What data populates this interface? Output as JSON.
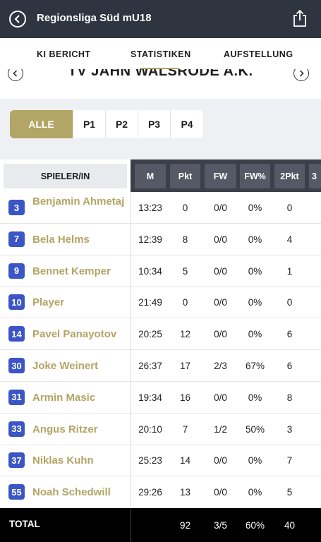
{
  "header": {
    "title": "Regionsliga Süd mU18",
    "back_icon": "chevron-left-circle-icon",
    "share_icon": "share-icon"
  },
  "tabs": [
    {
      "label": "KI BERICHT"
    },
    {
      "label": "STATISTIKEN",
      "active": true
    },
    {
      "label": "AUFSTELLUNG"
    }
  ],
  "team": {
    "name": "TV JAHN WALSRODE A.K."
  },
  "periods": [
    {
      "label": "ALLE",
      "active": true
    },
    {
      "label": "P1"
    },
    {
      "label": "P2"
    },
    {
      "label": "P3"
    },
    {
      "label": "P4"
    }
  ],
  "table": {
    "player_header": "SPIELER/IN",
    "columns": [
      "M",
      "Pkt",
      "FW",
      "FW%",
      "2Pkt",
      "3"
    ],
    "rows": [
      {
        "num": "3",
        "name": "Benjamin Ahmetaj",
        "m": "13:23",
        "pkt": "0",
        "fw": "0/0",
        "fwp": "0%",
        "p2": "0"
      },
      {
        "num": "7",
        "name": "Bela Helms",
        "m": "12:39",
        "pkt": "8",
        "fw": "0/0",
        "fwp": "0%",
        "p2": "4"
      },
      {
        "num": "9",
        "name": "Bennet Kemper",
        "m": "10:34",
        "pkt": "5",
        "fw": "0/0",
        "fwp": "0%",
        "p2": "1"
      },
      {
        "num": "10",
        "name": " Player",
        "m": "21:49",
        "pkt": "0",
        "fw": "0/0",
        "fwp": "0%",
        "p2": "0"
      },
      {
        "num": "14",
        "name": "Pavel Panayotov",
        "m": "20:25",
        "pkt": "12",
        "fw": "0/0",
        "fwp": "0%",
        "p2": "6"
      },
      {
        "num": "30",
        "name": "Joke Weinert",
        "m": "26:37",
        "pkt": "17",
        "fw": "2/3",
        "fwp": "67%",
        "p2": "6"
      },
      {
        "num": "31",
        "name": "Armin Masic",
        "m": "19:34",
        "pkt": "16",
        "fw": "0/0",
        "fwp": "0%",
        "p2": "8"
      },
      {
        "num": "33",
        "name": "Angus Ritzer",
        "m": "20:10",
        "pkt": "7",
        "fw": "1/2",
        "fwp": "50%",
        "p2": "3"
      },
      {
        "num": "37",
        "name": "Niklas Kuhn",
        "m": "25:23",
        "pkt": "14",
        "fw": "0/0",
        "fwp": "0%",
        "p2": "7"
      },
      {
        "num": "55",
        "name": "Noah Schedwill",
        "m": "29:26",
        "pkt": "13",
        "fw": "0/0",
        "fwp": "0%",
        "p2": "5"
      }
    ],
    "total": {
      "label": "TOTAL",
      "pkt": "92",
      "fw": "3/5",
      "fwp": "60%",
      "p2": "40"
    }
  },
  "colors": {
    "accent_gold": "#b2a565",
    "badge_blue": "#3b55c7",
    "header_dark": "#2f3540"
  }
}
